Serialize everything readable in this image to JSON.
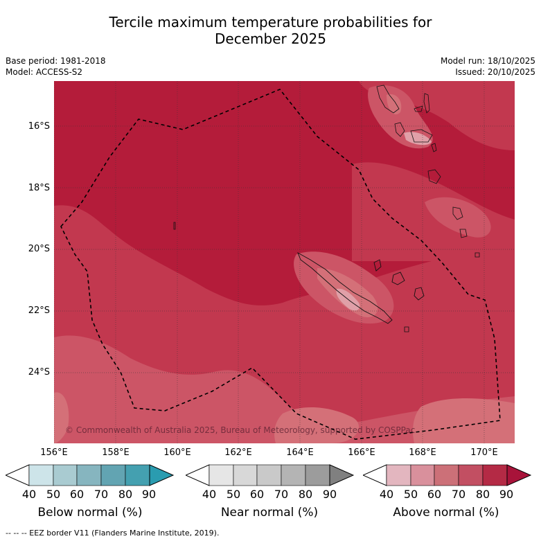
{
  "title_line1": "Tercile maximum temperature probabilities for",
  "title_line2": "December 2025",
  "meta_left": [
    "Base period: 1981-2018",
    "Model: ACCESS-S2"
  ],
  "meta_right": [
    "Model run: 18/10/2025",
    "Issued: 20/10/2025"
  ],
  "lat_labels": [
    "16°S",
    "18°S",
    "20°S",
    "22°S",
    "24°S"
  ],
  "lon_labels": [
    "156°E",
    "158°E",
    "160°E",
    "162°E",
    "164°E",
    "166°E",
    "168°E",
    "170°E"
  ],
  "copyright": "© Commonwealth of Australia 2025, Bureau of Meteorology, supported by COSPPac",
  "colorbars": [
    {
      "label": "Below normal (%)",
      "ticks": [
        "40",
        "50",
        "60",
        "70",
        "80",
        "90"
      ],
      "colors": [
        "#ffffff",
        "#cde4e9",
        "#a9cbd1",
        "#86b5bf",
        "#62a4b2",
        "#44a0b0",
        "#2a9cb0"
      ]
    },
    {
      "label": "Near normal (%)",
      "ticks": [
        "40",
        "50",
        "60",
        "70",
        "80",
        "90"
      ],
      "colors": [
        "#ffffff",
        "#e6e6e6",
        "#d8d8d8",
        "#c9c9c9",
        "#b4b4b4",
        "#9c9c9c",
        "#808080"
      ]
    },
    {
      "label": "Above normal (%)",
      "ticks": [
        "40",
        "50",
        "60",
        "70",
        "80",
        "90"
      ],
      "colors": [
        "#ffffff",
        "#e3b6bf",
        "#d9909c",
        "#cc7078",
        "#c24f62",
        "#b42a45",
        "#a8133a"
      ]
    }
  ],
  "footer": "--  --  -- EEZ border V11 (Flanders Marine Institute, 2019).",
  "colors": {
    "p60": "#cc7078",
    "p70": "#c24f62",
    "p80": "#b42a45",
    "p50": "#d9909c",
    "p40": "#e3b6bf"
  }
}
